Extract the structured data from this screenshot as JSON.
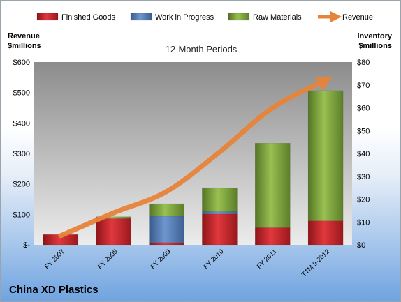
{
  "company": "China XD Plastics",
  "subtitle": "12-Month Periods",
  "left_axis_title": [
    "Revenue",
    "$millions"
  ],
  "right_axis_title": [
    "Inventory",
    "$millions"
  ],
  "colors": {
    "finished_goods": "#c0262b",
    "work_in_progress": "#4f7bb8",
    "raw_materials": "#7fa63a",
    "revenue": "#e8843a"
  },
  "chart_data": {
    "type": "bar",
    "stacked": true,
    "categories": [
      "FY 2007",
      "FY 2008",
      "FY 2009",
      "FY 2010",
      "FY 2011",
      "TTM 9-2012"
    ],
    "series": [
      {
        "name": "Finished Goods",
        "axis": "right",
        "values": [
          4.5,
          11.5,
          1,
          13.5,
          7.5,
          10.5
        ]
      },
      {
        "name": "Work in Progress",
        "axis": "right",
        "values": [
          0,
          0,
          11.5,
          1,
          0,
          0
        ]
      },
      {
        "name": "Raw Materials",
        "axis": "right",
        "values": [
          0,
          0.8,
          5.5,
          10.5,
          37,
          57
        ]
      },
      {
        "name": "Revenue",
        "type": "line",
        "axis": "left",
        "values": [
          30,
          105,
          175,
          305,
          450,
          540
        ]
      }
    ],
    "left_axis": {
      "min": 0,
      "max": 600,
      "step": 100,
      "tick_labels": [
        "$-",
        "$100",
        "$200",
        "$300",
        "$400",
        "$500",
        "$600"
      ]
    },
    "right_axis": {
      "min": 0,
      "max": 80,
      "step": 10,
      "tick_labels": [
        "$0",
        "$10",
        "$20",
        "$30",
        "$40",
        "$50",
        "$60",
        "$70",
        "$80"
      ]
    },
    "legend_position": "top",
    "grid": false
  }
}
